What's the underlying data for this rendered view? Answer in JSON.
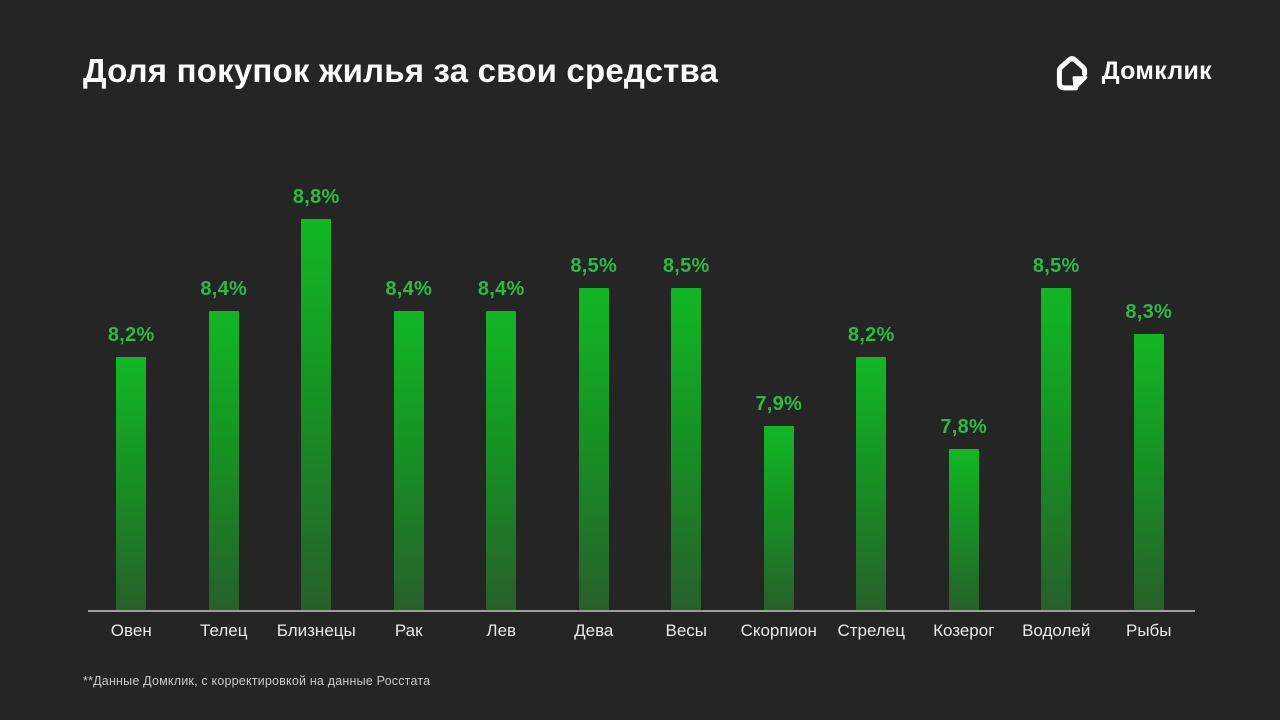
{
  "page": {
    "background": "#252526"
  },
  "header": {
    "title": "Доля покупок жилья за свои средства",
    "logo": {
      "text": "Домклик",
      "icon": "domclick-house-icon",
      "color": "#ffffff"
    }
  },
  "chart_data": {
    "type": "bar",
    "title": "Доля покупок жилья за свои средства",
    "categories": [
      "Овен",
      "Телец",
      "Близнецы",
      "Рак",
      "Лев",
      "Дева",
      "Весы",
      "Скорпион",
      "Стрелец",
      "Козерог",
      "Водолей",
      "Рыбы"
    ],
    "values": [
      8.2,
      8.4,
      8.8,
      8.4,
      8.4,
      8.5,
      8.5,
      7.9,
      8.2,
      7.8,
      8.5,
      8.3
    ],
    "value_labels": [
      "8,2%",
      "8,4%",
      "8,8%",
      "8,4%",
      "8,4%",
      "8,5%",
      "8,5%",
      "7,9%",
      "8,2%",
      "7,8%",
      "8,5%",
      "8,3%"
    ],
    "unit": "%",
    "xlabel": "",
    "ylabel": "",
    "ylim": [
      7.1,
      8.9
    ],
    "grid": false,
    "legend": false,
    "bar_color_top": "#12b724",
    "bar_color_mid": "#169323",
    "bar_color_bottom": "#27602a",
    "value_label_color": "#29bc43",
    "axis_color": "#9c9c9c",
    "category_label_color": "#e9e9e9"
  },
  "footnote": {
    "text": "**Данные Домклик, с корректировкой на данные Росстата"
  }
}
